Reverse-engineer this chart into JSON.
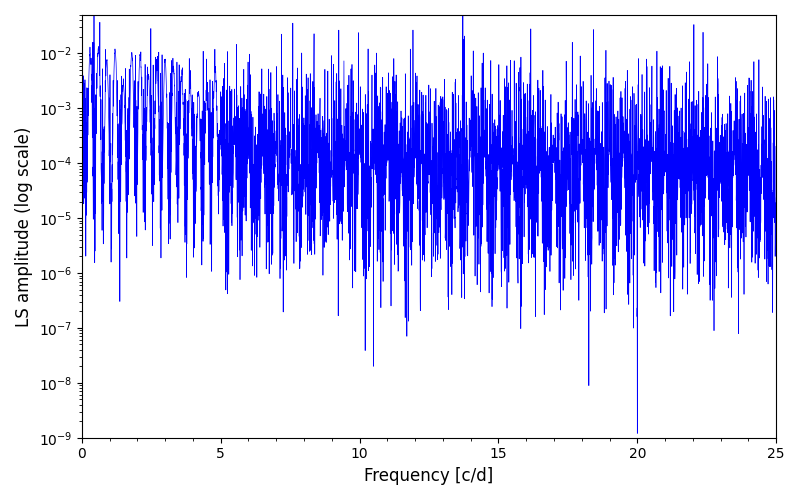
{
  "title": "",
  "xlabel": "Frequency [c/d]",
  "ylabel": "LS amplitude (log scale)",
  "line_color": "blue",
  "line_width": 0.5,
  "xmin": 0,
  "xmax": 25,
  "ymin": 1e-09,
  "ymax": 0.05,
  "figsize": [
    8.0,
    5.0
  ],
  "dpi": 100,
  "seed": 1234,
  "n_points": 5000,
  "bg_color": "#ffffff"
}
